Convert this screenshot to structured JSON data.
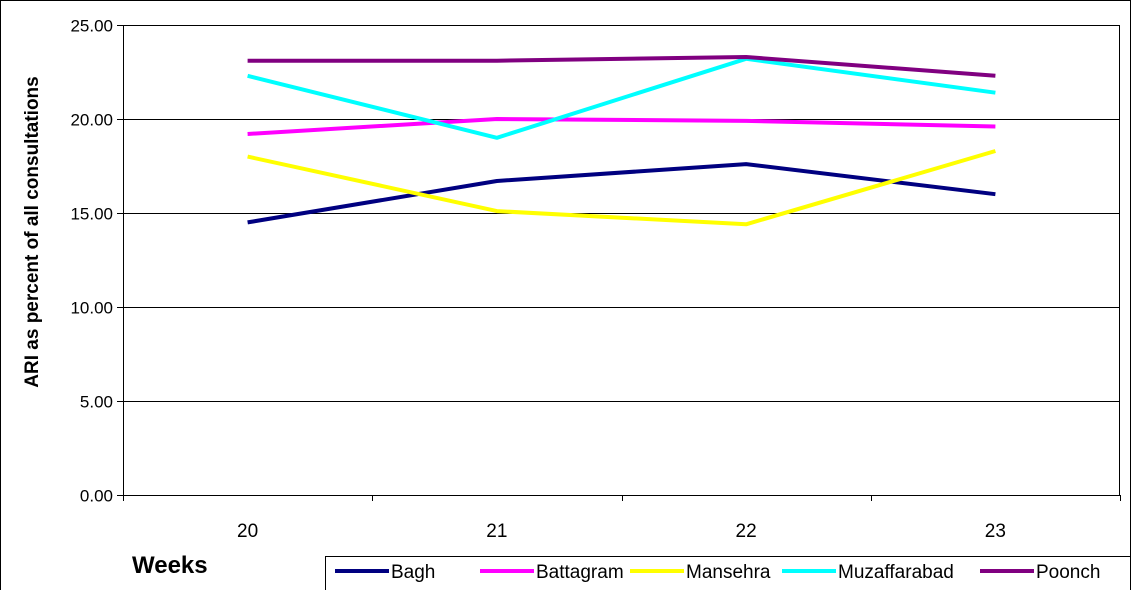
{
  "chart_data": {
    "type": "line",
    "title": "",
    "xlabel": "Weeks",
    "ylabel": "ARI as percent of all consultations",
    "categories": [
      "20",
      "21",
      "22",
      "23"
    ],
    "ylim": [
      0,
      25
    ],
    "yticks": [
      "0.00",
      "5.00",
      "10.00",
      "15.00",
      "20.00",
      "25.00"
    ],
    "grid": true,
    "legend_position": "bottom-right",
    "series": [
      {
        "name": "Bagh",
        "color": "#000080",
        "values": [
          14.5,
          16.7,
          17.6,
          16.0
        ]
      },
      {
        "name": "Battagram",
        "color": "#FF00FF",
        "values": [
          19.2,
          20.0,
          19.9,
          19.6
        ]
      },
      {
        "name": "Mansehra",
        "color": "#FFFF00",
        "values": [
          18.0,
          15.1,
          14.4,
          18.3
        ]
      },
      {
        "name": "Muzaffarabad",
        "color": "#00FFFF",
        "values": [
          22.3,
          19.0,
          23.2,
          21.4
        ]
      },
      {
        "name": "Poonch",
        "color": "#800080",
        "values": [
          23.1,
          23.1,
          23.3,
          22.3
        ]
      }
    ]
  }
}
